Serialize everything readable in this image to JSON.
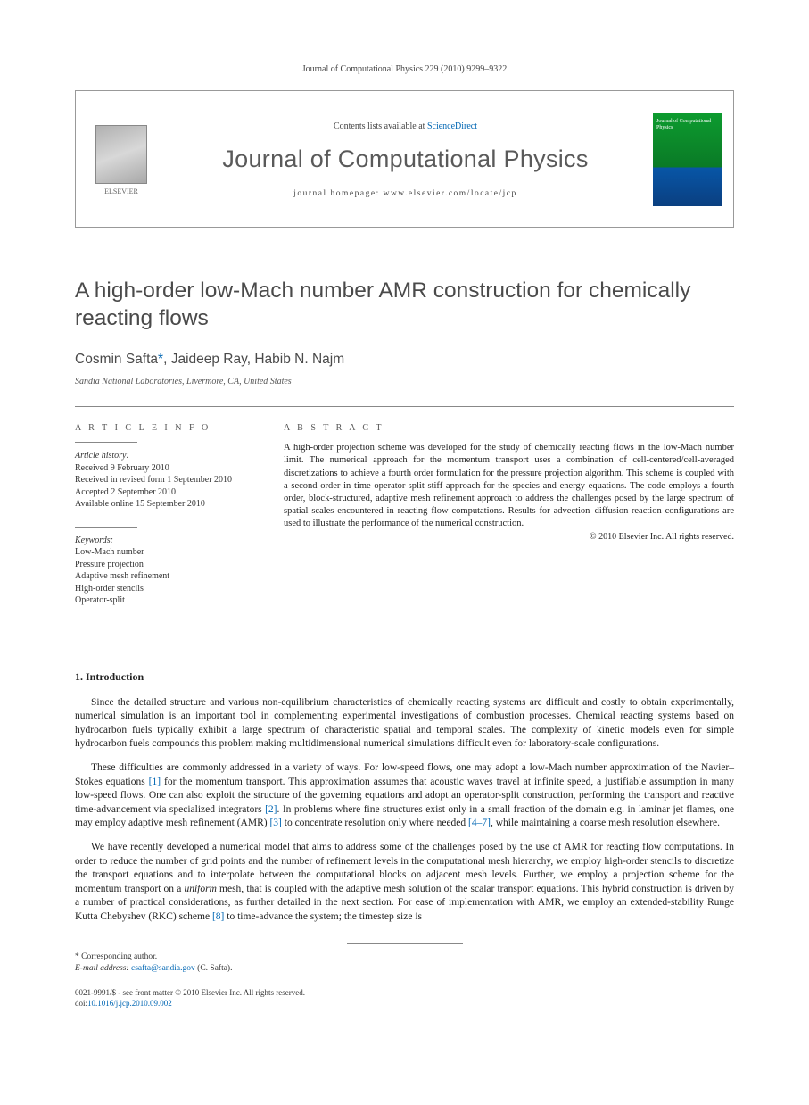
{
  "citation": "Journal of Computational Physics 229 (2010) 9299–9322",
  "header": {
    "contents_prefix": "Contents lists available at ",
    "contents_link": "ScienceDirect",
    "journal": "Journal of Computational Physics",
    "homepage": "journal homepage: www.elsevier.com/locate/jcp",
    "publisher": "ELSEVIER",
    "cover_title": "Journal of Computational Physics"
  },
  "title": "A high-order low-Mach number AMR construction for chemically reacting flows",
  "authors": {
    "list": "Cosmin Safta",
    "star": "*",
    "rest": ", Jaideep Ray, Habib N. Najm"
  },
  "affiliation": "Sandia National Laboratories, Livermore, CA, United States",
  "info_head": "A R T I C L E   I N F O",
  "abstract_head": "A B S T R A C T",
  "history": {
    "label": "Article history:",
    "received": "Received 9 February 2010",
    "revised": "Received in revised form 1 September 2010",
    "accepted": "Accepted 2 September 2010",
    "online": "Available online 15 September 2010"
  },
  "keywords": {
    "label": "Keywords:",
    "items": [
      "Low-Mach number",
      "Pressure projection",
      "Adaptive mesh refinement",
      "High-order stencils",
      "Operator-split"
    ]
  },
  "abstract": "A high-order projection scheme was developed for the study of chemically reacting flows in the low-Mach number limit. The numerical approach for the momentum transport uses a combination of cell-centered/cell-averaged discretizations to achieve a fourth order formulation for the pressure projection algorithm. This scheme is coupled with a second order in time operator-split stiff approach for the species and energy equations. The code employs a fourth order, block-structured, adaptive mesh refinement approach to address the challenges posed by the large spectrum of spatial scales encountered in reacting flow computations. Results for advection–diffusion-reaction configurations are used to illustrate the performance of the numerical construction.",
  "copyright": "© 2010 Elsevier Inc. All rights reserved.",
  "intro_head": "1. Introduction",
  "paragraphs": {
    "p1": "Since the detailed structure and various non-equilibrium characteristics of chemically reacting systems are difficult and costly to obtain experimentally, numerical simulation is an important tool in complementing experimental investigations of combustion processes. Chemical reacting systems based on hydrocarbon fuels typically exhibit a large spectrum of characteristic spatial and temporal scales. The complexity of kinetic models even for simple hydrocarbon fuels compounds this problem making multidimensional numerical simulations difficult even for laboratory-scale configurations.",
    "p2a": "These difficulties are commonly addressed in a variety of ways. For low-speed flows, one may adopt a low-Mach number approximation of the Navier–Stokes equations ",
    "p2_ref1": "[1]",
    "p2b": " for the momentum transport. This approximation assumes that acoustic waves travel at infinite speed, a justifiable assumption in many low-speed flows. One can also exploit the structure of the governing equations and adopt an operator-split construction, performing the transport and reactive time-advancement via specialized integrators ",
    "p2_ref2": "[2]",
    "p2c": ". In problems where fine structures exist only in a small fraction of the domain e.g. in laminar jet flames, one may employ adaptive mesh refinement (AMR) ",
    "p2_ref3": "[3]",
    "p2d": " to concentrate resolution only where needed ",
    "p2_ref4": "[4–7]",
    "p2e": ", while maintaining a coarse mesh resolution elsewhere.",
    "p3a": "We have recently developed a numerical model that aims to address some of the challenges posed by the use of AMR for reacting flow computations. In order to reduce the number of grid points and the number of refinement levels in the computational mesh hierarchy, we employ high-order stencils to discretize the transport equations and to interpolate between the computational blocks on adjacent mesh levels. Further, we employ a projection scheme for the momentum transport on a ",
    "p3_em": "uniform",
    "p3b": " mesh, that is coupled with the adaptive mesh solution of the scalar transport equations. This hybrid construction is driven by a number of practical considerations, as further detailed in the next section. For ease of implementation with AMR, we employ an extended-stability Runge Kutta Chebyshev (RKC) scheme ",
    "p3_ref8": "[8]",
    "p3c": " to time-advance the system; the timestep size is"
  },
  "footnote": {
    "star": "* Corresponding author.",
    "email_label": "E-mail address: ",
    "email": "csafta@sandia.gov",
    "email_suffix": " (C. Safta)."
  },
  "bottom": {
    "issn": "0021-9991/$ - see front matter © 2010 Elsevier Inc. All rights reserved.",
    "doi_label": "doi:",
    "doi": "10.1016/j.jcp.2010.09.002"
  },
  "colors": {
    "link": "#0066b3",
    "gray_text": "#4a4a4a",
    "rule": "#888888"
  }
}
